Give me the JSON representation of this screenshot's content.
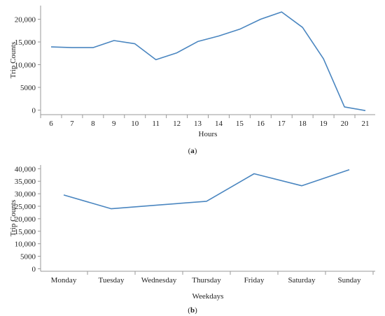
{
  "colors": {
    "line": "#4a86c0",
    "axis": "#999999"
  },
  "chart_data": [
    {
      "type": "line",
      "panel_label": "(a)",
      "panel_label_parts": {
        "open": "(",
        "letter": "a",
        "close": ")"
      },
      "xlabel": "Hours",
      "ylabel": "Trip Counts",
      "categories": [
        "6",
        "7",
        "8",
        "9",
        "10",
        "11",
        "12",
        "13",
        "14",
        "15",
        "16",
        "17",
        "18",
        "19",
        "20",
        "21"
      ],
      "values": [
        13900,
        13750,
        13750,
        15300,
        14600,
        11100,
        12600,
        15100,
        16300,
        17800,
        20000,
        21600,
        18200,
        11300,
        700,
        -100
      ],
      "yticks": [
        0,
        5000,
        10000,
        15000,
        20000
      ],
      "ytick_labels": [
        "0",
        "5000",
        "10,000",
        "15,000",
        "20,000"
      ],
      "ylim": [
        -1000,
        23000
      ]
    },
    {
      "type": "line",
      "panel_label": "(b)",
      "panel_label_parts": {
        "open": "(",
        "letter": "b",
        "close": ")"
      },
      "xlabel": "Weekdays",
      "ylabel": "Trip Counts",
      "categories": [
        "Monday",
        "Tuesday",
        "Wednesday",
        "Thursday",
        "Friday",
        "Saturday",
        "Sunday"
      ],
      "values": [
        29500,
        24000,
        25500,
        27000,
        38000,
        33200,
        39600
      ],
      "yticks": [
        0,
        5000,
        10000,
        15000,
        20000,
        25000,
        30000,
        35000,
        40000
      ],
      "ytick_labels": [
        "0",
        "5000",
        "10,000",
        "15,000",
        "20,000",
        "25,000",
        "30,000",
        "35,000",
        "40,000"
      ],
      "ylim": [
        -1000,
        41500
      ]
    }
  ]
}
